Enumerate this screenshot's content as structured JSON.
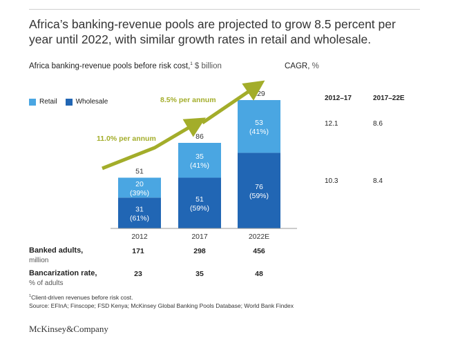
{
  "title": "Africa’s banking-revenue pools are projected to grow 8.5 percent per year until 2022, with similar growth rates in retail and wholesale.",
  "subtitle": {
    "text": "Africa banking-revenue pools before risk cost,",
    "marker": "1",
    "unit": " $ billion"
  },
  "cagr": {
    "heading": "CAGR,",
    "unit": " %",
    "columns": [
      "2012–17",
      "2017–22E"
    ],
    "rows": [
      {
        "series": "Retail",
        "values": [
          "12.1",
          "8.6"
        ]
      },
      {
        "series": "Wholesale",
        "values": [
          "10.3",
          "8.4"
        ]
      }
    ]
  },
  "colors": {
    "retail": "#4aa6e2",
    "wholesale": "#2166b4",
    "arrow": "#a3ad2a",
    "axis": "#999999"
  },
  "chart_data": {
    "type": "bar",
    "stacked": true,
    "categories": [
      "2012",
      "2017",
      "2022E"
    ],
    "series": [
      {
        "name": "Wholesale",
        "values": [
          31,
          51,
          76
        ],
        "shares": [
          "(61%)",
          "(59%)",
          "(59%)"
        ]
      },
      {
        "name": "Retail",
        "values": [
          20,
          35,
          53
        ],
        "shares": [
          "(39%)",
          "(41%)",
          "(41%)"
        ]
      }
    ],
    "totals": [
      51,
      86,
      129
    ],
    "legend": [
      "Retail",
      "Wholesale"
    ],
    "legend_position": "top-left",
    "annotations": [
      "11.0% per annum",
      "8.5% per annum"
    ],
    "ylim": [
      0,
      129
    ]
  },
  "table": {
    "rows": [
      {
        "label": "Banked adults,",
        "unit": "million",
        "values": [
          "171",
          "298",
          "456"
        ]
      },
      {
        "label": "Bancarization rate,",
        "unit": "% of adults",
        "values": [
          "23",
          "35",
          "48"
        ]
      }
    ]
  },
  "footnote": {
    "marker": "1",
    "text": "Client-driven revenues before risk cost."
  },
  "source": "Source:  EFInA; Finscope; FSD Kenya; McKinsey Global Banking Pools Database; World Bank Findex",
  "brand": "McKinsey&Company"
}
